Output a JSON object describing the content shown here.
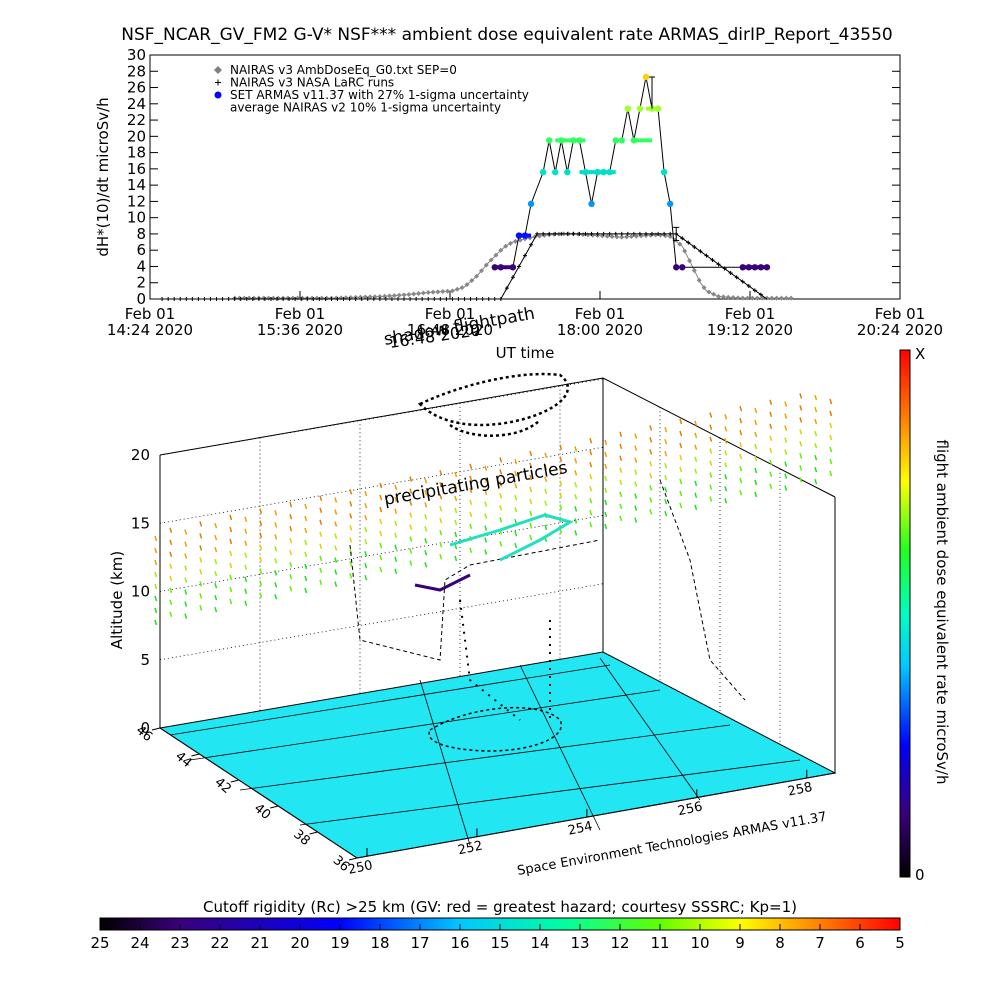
{
  "chart_data": [
    {
      "type": "scatter",
      "title": "NSF_NCAR_GV_FM2 G-V* NSF*** ambient dose equivalent rate ARMAS_dirIP_Report_43550",
      "xlabel": "UT time",
      "ylabel": "dH*(10)/dt microSv/h",
      "ylim": [
        0,
        30
      ],
      "yticks": [
        "0",
        "2",
        "4",
        "6",
        "8",
        "10",
        "12",
        "14",
        "16",
        "18",
        "20",
        "22",
        "24",
        "26",
        "28",
        "30"
      ],
      "xticks": [
        {
          "line1": "Feb 01",
          "line2": "14:24 2020"
        },
        {
          "line1": "Feb 01",
          "line2": "15:36 2020"
        },
        {
          "line1": "Feb 01",
          "line2": "16:48 2020"
        },
        {
          "line1": "Feb 01",
          "line2": "18:00 2020"
        },
        {
          "line1": "Feb 01",
          "line2": "19:12 2020"
        },
        {
          "line1": "Feb 01",
          "line2": "20:24 2020"
        }
      ],
      "legend": [
        {
          "label": "NAIRAS v3 AmbDoseEq_G0.txt SEP=0",
          "marker": "diamond",
          "color": "#808080"
        },
        {
          "label": "NAIRAS v3 NASA LaRC runs",
          "marker": "plus",
          "color": "#000000"
        },
        {
          "label": "SET ARMAS v11.37 with 27% 1-sigma uncertainty",
          "marker": "dot",
          "color": "#0000ff"
        },
        {
          "label": "average NAIRAS v2 10% 1-sigma uncertainty",
          "marker": "none",
          "color": "#000000"
        }
      ],
      "legend_position": "top-left",
      "series": [
        {
          "name": "NAIRAS v3 AmbDoseEq_G0.txt SEP=0",
          "x_hours": [
            15.1,
            15.3,
            15.5,
            15.7,
            15.9,
            16.1,
            16.3,
            16.5,
            16.7,
            16.9,
            17.0,
            17.1,
            17.2,
            17.3,
            17.35,
            17.4,
            17.45,
            17.5,
            17.6,
            17.7,
            17.8,
            17.9,
            18.0,
            18.1,
            18.2,
            18.3,
            18.4,
            18.5,
            18.6,
            18.7,
            18.8,
            18.85,
            18.9,
            18.95,
            19.0,
            19.1,
            19.3,
            19.5,
            19.7
          ],
          "values": [
            0.1,
            0.1,
            0.1,
            0.1,
            0.1,
            0.2,
            0.3,
            0.5,
            0.8,
            1.0,
            1.5,
            2.8,
            4.5,
            6.0,
            6.6,
            7.0,
            7.2,
            7.4,
            7.7,
            7.9,
            8.0,
            8.0,
            7.9,
            7.8,
            7.7,
            7.6,
            7.7,
            7.8,
            7.9,
            7.7,
            6.5,
            5.0,
            3.5,
            2.0,
            1.0,
            0.3,
            0.1,
            0.1,
            0.1
          ]
        },
        {
          "name": "NAIRAS v3 NASA LaRC runs",
          "x_hours": [
            14.5,
            17.3,
            17.6,
            18.0,
            18.4,
            18.75,
            19.5
          ],
          "values": [
            0,
            0,
            8.0,
            8.0,
            8.0,
            8.0,
            0
          ]
        },
        {
          "name": "SET ARMAS v11.37 with 27% 1-sigma uncertainty",
          "x_hours": [
            17.25,
            17.3,
            17.4,
            17.45,
            17.5,
            17.55,
            17.65,
            17.7,
            17.75,
            17.8,
            17.85,
            17.9,
            17.95,
            18.0,
            18.05,
            18.1,
            18.15,
            18.2,
            18.25,
            18.3,
            18.35,
            18.4,
            18.45,
            18.5,
            18.55,
            18.6,
            18.65,
            18.7,
            18.75,
            18.8,
            19.3,
            19.35,
            19.4,
            19.45,
            19.5
          ],
          "values": [
            3.9,
            3.9,
            3.9,
            7.8,
            7.8,
            11.7,
            15.6,
            19.5,
            15.6,
            19.5,
            15.6,
            19.5,
            19.5,
            15.6,
            11.7,
            15.6,
            15.6,
            15.6,
            19.5,
            19.5,
            23.4,
            19.5,
            23.4,
            27.3,
            23.4,
            23.4,
            15.6,
            11.7,
            3.9,
            3.9,
            3.9,
            3.9,
            3.9,
            3.9,
            3.9
          ],
          "colors": [
            "#3a007a",
            "#3a007a",
            "#3a007a",
            "#0010ff",
            "#0010ff",
            "#0096ff",
            "#00e0c8",
            "#30ff60",
            "#00e0c8",
            "#30ff60",
            "#00e0c8",
            "#30ff60",
            "#30ff60",
            "#00e0c8",
            "#0096ff",
            "#00e0c8",
            "#00e0c8",
            "#00e0c8",
            "#30ff60",
            "#30ff60",
            "#a0ff30",
            "#30ff60",
            "#a0ff30",
            "#ffd000",
            "#a0ff30",
            "#a0ff30",
            "#00e0c8",
            "#0096ff",
            "#3a007a",
            "#3a007a",
            "#3a007a",
            "#3a007a",
            "#3a007a",
            "#3a007a",
            "#3a007a"
          ]
        }
      ],
      "annotations": [
        "UT time"
      ]
    },
    {
      "type": "scatter",
      "title": "",
      "ylabel": "Altitude (km)",
      "zticks": [
        "0",
        "5",
        "10",
        "15",
        "20"
      ],
      "lat_ticks": [
        "36",
        "38",
        "40",
        "42",
        "44",
        "46"
      ],
      "lon_ticks": [
        "250",
        "252",
        "254",
        "256",
        "258"
      ],
      "labels": {
        "shadow_flightpath": "shadow flightpath",
        "precipitating_particles": "precipitating particles",
        "credit": "Space Environment Technologies ARMAS v11.37",
        "overlap": "16:48 2020"
      },
      "colorbar_right": {
        "label": "flight ambient dose equivalent rate microSv/h",
        "top_label": "X",
        "bottom_label": "0"
      },
      "colorbar_bottom": {
        "label": "Cutoff rigidity (Rc) >25 km (GV: red = greatest hazard; courtesy SSSRC; Kp=1)",
        "ticks": [
          "25",
          "24",
          "23",
          "22",
          "21",
          "20",
          "19",
          "18",
          "17",
          "16",
          "15",
          "14",
          "13",
          "12",
          "11",
          "10",
          "9",
          "8",
          "7",
          "6",
          "5"
        ]
      }
    }
  ]
}
